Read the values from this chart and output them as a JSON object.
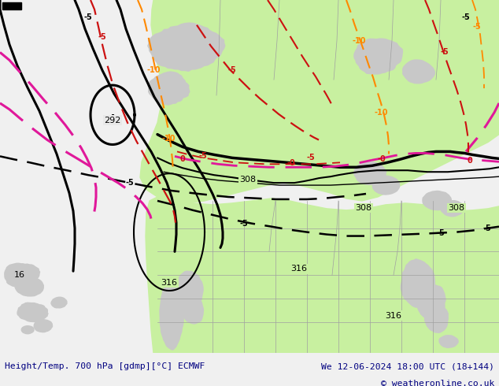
{
  "title_left": "Height/Temp. 700 hPa [gdmp][°C] ECMWF",
  "title_right": "We 12-06-2024 18:00 UTC (18+144)",
  "copyright": "© weatheronline.co.uk",
  "bg_color": "#f0f0f0",
  "ocean_color": "#e8e8e8",
  "land_gray": "#c8c8c8",
  "green_color": "#c8f0a0",
  "bottom_bar_color": "#dce8f8",
  "title_color": "#000080",
  "fig_width": 6.34,
  "fig_height": 4.9,
  "dpi": 100
}
